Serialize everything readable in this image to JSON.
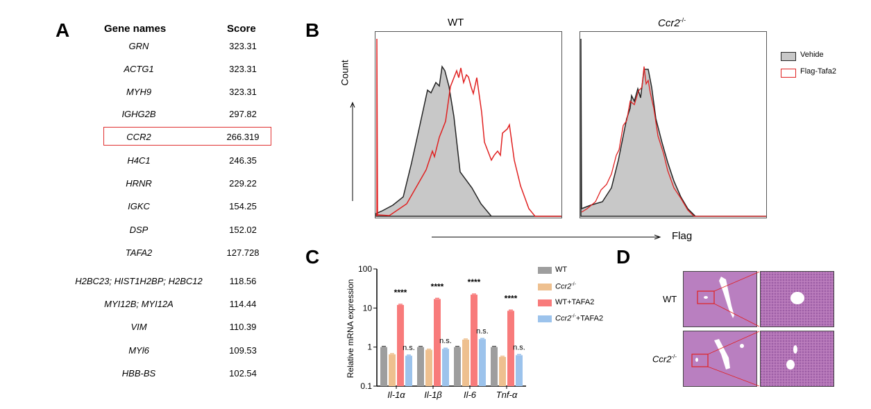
{
  "panelA": {
    "label": "A",
    "headers": {
      "gene": "Gene names",
      "score": "Score"
    },
    "rows": [
      {
        "gene": "GRN",
        "score": "323.31"
      },
      {
        "gene": "ACTG1",
        "score": "323.31"
      },
      {
        "gene": "MYH9",
        "score": "323.31"
      },
      {
        "gene": "IGHG2B",
        "score": "297.82"
      },
      {
        "gene": "CCR2",
        "score": "266.319",
        "highlighted": true
      },
      {
        "gene": "H4C1",
        "score": "246.35"
      },
      {
        "gene": "HRNR",
        "score": "229.22"
      },
      {
        "gene": "IGKC",
        "score": "154.25"
      },
      {
        "gene": "DSP",
        "score": "152.02"
      },
      {
        "gene": "TAFA2",
        "score": "127.728"
      },
      {
        "gene": "H2BC23; HIST1H2BP; H2BC12",
        "score": "118.56"
      },
      {
        "gene": "MYI12B; MYI12A",
        "score": "114.44"
      },
      {
        "gene": "VIM",
        "score": "110.39"
      },
      {
        "gene": "MYl6",
        "score": "109.53"
      },
      {
        "gene": "HBB-BS",
        "score": "102.54"
      }
    ],
    "highlight_color": "#e03030"
  },
  "panelB": {
    "label": "B",
    "titles": {
      "wt": "WT",
      "ko": "Ccr2",
      "ko_sup": "-/-"
    },
    "ylabel": "Count",
    "xlabel": "Flag",
    "legend": [
      {
        "name": "Vehide",
        "color": "#c8c8c8",
        "border": "#222222"
      },
      {
        "name": "Flag-Tafa2",
        "color": "#ffffff",
        "border": "#e02020"
      }
    ]
  },
  "chart_data": {
    "type": "bar",
    "label": "C",
    "ylabel": "Relative mRNA expression",
    "yscale": "log",
    "ylim": [
      0.1,
      100
    ],
    "yticks": [
      "0.1",
      "1",
      "10",
      "100"
    ],
    "categories": [
      "Il-1α",
      "Il-1β",
      "Il-6",
      "Tnf-α"
    ],
    "series": [
      {
        "name": "WT",
        "color": "#9e9e9e",
        "values": [
          1.0,
          1.0,
          1.0,
          1.0
        ]
      },
      {
        "name": "Ccr2",
        "name_sup": "-/-",
        "color": "#eec08f",
        "values": [
          0.65,
          0.85,
          1.55,
          0.56
        ]
      },
      {
        "name": "WT+TAFA2",
        "color": "#f87b7b",
        "values": [
          12,
          17,
          22,
          8.5
        ]
      },
      {
        "name": "Ccr2",
        "name_sup": "-/-",
        "name_suffix": "+TAFA2",
        "color": "#9cc3ec",
        "values": [
          0.6,
          0.9,
          1.6,
          0.62
        ]
      }
    ],
    "annotations": {
      "stars": [
        "****",
        "****",
        "****",
        "****"
      ],
      "ns": [
        "n.s.",
        "n.s.",
        "n.s.",
        "n.s."
      ]
    }
  },
  "panelD": {
    "label": "D",
    "rows": [
      {
        "name": "WT"
      },
      {
        "name": "Ccr2",
        "sup": "-/-"
      }
    ]
  }
}
